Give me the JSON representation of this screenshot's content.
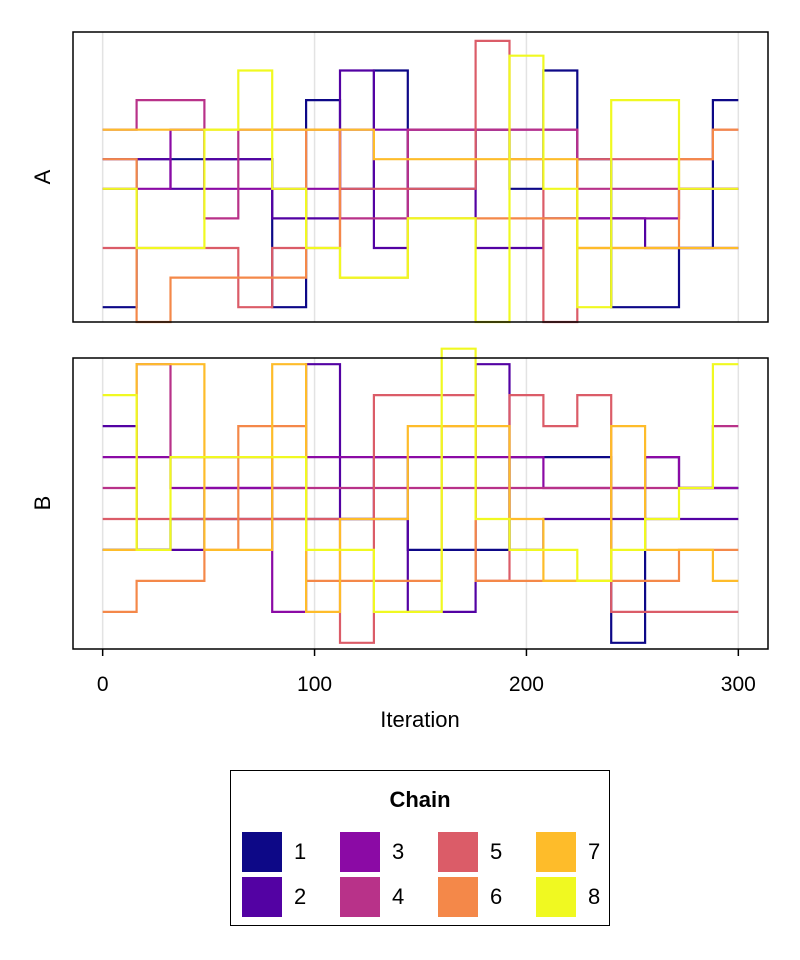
{
  "chart_data": {
    "type": "line",
    "step": true,
    "xlabel": "Iteration",
    "xlim": [
      -14,
      314
    ],
    "xticks": [
      0,
      100,
      200,
      300
    ],
    "x": [
      0,
      16,
      32,
      48,
      64,
      80,
      96,
      112,
      128,
      144,
      160,
      176,
      192,
      208,
      224,
      240,
      256,
      272,
      288,
      300
    ],
    "panels": [
      {
        "label": "A",
        "ylim": [
          -0.5,
          9.3
        ],
        "series": [
          {
            "name": "1",
            "color": "#0d0887",
            "values": [
              0,
              5,
              5,
              5,
              5,
              0,
              7,
              4,
              8,
              4,
              4,
              6,
              4,
              8,
              5,
              0,
              0,
              2,
              7,
              7
            ]
          },
          {
            "name": "2",
            "color": "#5302a3",
            "values": [
              5,
              5,
              4,
              5,
              5,
              3,
              3,
              8,
              2,
              6,
              6,
              2,
              2,
              3,
              3,
              3,
              2,
              2,
              2,
              2
            ]
          },
          {
            "name": "3",
            "color": "#8b0aa5",
            "values": [
              4,
              4,
              6,
              4,
              4,
              4,
              4,
              6,
              6,
              6,
              6,
              6,
              6,
              6,
              3,
              3,
              3,
              4,
              4,
              4
            ]
          },
          {
            "name": "4",
            "color": "#b83289",
            "values": [
              6,
              7,
              7,
              3,
              6,
              6,
              6,
              3,
              3,
              6,
              6,
              6,
              6,
              6,
              4,
              4,
              4,
              4,
              4,
              4
            ]
          },
          {
            "name": "5",
            "color": "#db5c68",
            "values": [
              2,
              2,
              2,
              2,
              0,
              2,
              2,
              4,
              4,
              4,
              4,
              9,
              5,
              -0.5,
              5,
              5,
              5,
              5,
              6,
              6
            ]
          },
          {
            "name": "6",
            "color": "#f48849",
            "values": [
              5,
              -0.5,
              1,
              1,
              1,
              1,
              6,
              1,
              1,
              3,
              3,
              3,
              3,
              3,
              2,
              2,
              2,
              5,
              6,
              6
            ]
          },
          {
            "name": "7",
            "color": "#febc2a",
            "values": [
              6,
              6,
              6,
              6,
              6,
              6,
              6,
              6,
              5,
              5,
              5,
              5,
              5,
              5,
              2,
              2,
              2,
              2,
              2,
              2
            ]
          },
          {
            "name": "8",
            "color": "#f0f921",
            "values": [
              4,
              2,
              2,
              6,
              8,
              4,
              2,
              1,
              1,
              3,
              3,
              -0.5,
              8.5,
              4,
              0,
              7,
              7,
              4,
              4,
              4
            ]
          }
        ]
      },
      {
        "label": "B",
        "ylim": [
          -0.2,
          9.2
        ],
        "series": [
          {
            "name": "1",
            "color": "#0d0887",
            "values": [
              3,
              3,
              4,
              4,
              4,
              4,
              4,
              4,
              4,
              3,
              3,
              3,
              6,
              6,
              6,
              0,
              6,
              5,
              5,
              5
            ]
          },
          {
            "name": "2",
            "color": "#5302a3",
            "values": [
              7,
              3,
              3,
              5,
              5,
              5,
              9,
              4,
              6,
              1,
              1,
              9,
              3,
              4,
              4,
              4,
              4,
              4,
              4,
              4
            ]
          },
          {
            "name": "3",
            "color": "#8b0aa5",
            "values": [
              6,
              6,
              5,
              5,
              5,
              1,
              6,
              6,
              6,
              6,
              6,
              6,
              6,
              5,
              5,
              5,
              6,
              5,
              5,
              5
            ]
          },
          {
            "name": "4",
            "color": "#b83289",
            "values": [
              5,
              9,
              6,
              6,
              6,
              5,
              5,
              5,
              5,
              5,
              5,
              5,
              5,
              5,
              5,
              5,
              5,
              5,
              7,
              7
            ]
          },
          {
            "name": "5",
            "color": "#db5c68",
            "values": [
              4,
              4,
              4,
              4,
              4,
              4,
              4,
              0,
              8,
              8,
              8,
              2,
              8,
              7,
              8,
              1,
              1,
              1,
              1,
              1
            ]
          },
          {
            "name": "6",
            "color": "#f48849",
            "values": [
              1,
              2,
              2,
              3,
              7,
              7,
              2,
              2,
              2,
              2,
              7,
              2,
              2,
              2,
              2,
              2,
              2,
              3,
              3,
              3
            ]
          },
          {
            "name": "7",
            "color": "#febc2a",
            "values": [
              3,
              9,
              9,
              3,
              3,
              9,
              1,
              4,
              4,
              7,
              7,
              7,
              4,
              2,
              2,
              7,
              3,
              3,
              2,
              2
            ]
          },
          {
            "name": "8",
            "color": "#f0f921",
            "values": [
              8,
              3,
              6,
              6,
              6,
              6,
              3,
              3,
              1,
              1,
              9.5,
              4,
              3,
              3,
              2,
              3,
              4,
              5,
              9,
              9
            ]
          }
        ]
      }
    ],
    "legend": {
      "title": "Chain",
      "placement": "bottom-center",
      "items": [
        {
          "label": "1",
          "color": "#0d0887"
        },
        {
          "label": "2",
          "color": "#5302a3"
        },
        {
          "label": "3",
          "color": "#8b0aa5"
        },
        {
          "label": "4",
          "color": "#b83289"
        },
        {
          "label": "5",
          "color": "#db5c68"
        },
        {
          "label": "6",
          "color": "#f48849"
        },
        {
          "label": "7",
          "color": "#febc2a"
        },
        {
          "label": "8",
          "color": "#f0f921"
        }
      ]
    }
  }
}
